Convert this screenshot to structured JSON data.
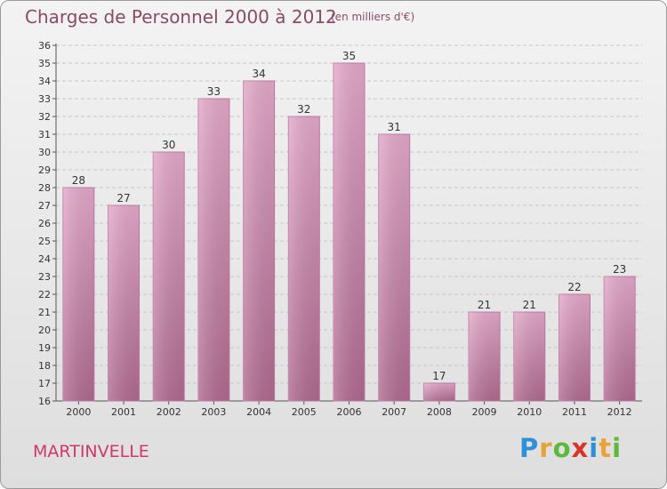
{
  "title": "Charges de Personnel 2000 à 2012",
  "subtitle": "(en milliers d'€)",
  "commune": "MARTINVELLE",
  "logo": {
    "letters": [
      "P",
      "r",
      "o",
      "x",
      "i",
      "t",
      "i"
    ],
    "colors": [
      "#2f8fd8",
      "#e8a23a",
      "#5fb83a",
      "#d8342c",
      "#2f8fd8",
      "#e8a23a",
      "#5fb83a"
    ]
  },
  "colors": {
    "bar": "#d492b6",
    "title": "#8a4a66",
    "commune": "#d0386a"
  },
  "chart_data": {
    "type": "bar",
    "title": "Charges de Personnel 2000 à 2012",
    "subtitle": "(en milliers d'€)",
    "categories": [
      "2000",
      "2001",
      "2002",
      "2003",
      "2004",
      "2005",
      "2006",
      "2007",
      "2008",
      "2009",
      "2010",
      "2011",
      "2012"
    ],
    "values": [
      28,
      27,
      30,
      33,
      34,
      32,
      35,
      31,
      17,
      21,
      21,
      22,
      23
    ],
    "ylim": [
      16,
      36
    ],
    "yticks": [
      16,
      17,
      18,
      19,
      20,
      21,
      22,
      23,
      24,
      25,
      26,
      27,
      28,
      29,
      30,
      31,
      32,
      33,
      34,
      35,
      36
    ],
    "grid": true,
    "xlabel": "",
    "ylabel": ""
  }
}
